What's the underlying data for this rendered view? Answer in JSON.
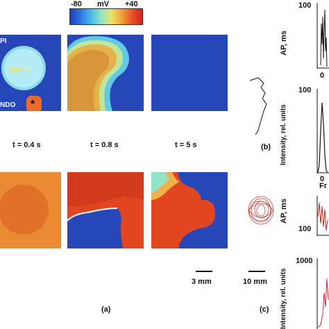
{
  "colorbar": {
    "min_label": "-80",
    "unit_label": "mV",
    "max_label": "+40",
    "colors": [
      "#1a3fbf",
      "#2f73e0",
      "#46b8e8",
      "#8fe3c6",
      "#e9e36a",
      "#f2a13a",
      "#e8512a",
      "#c8261c"
    ]
  },
  "region_labels": {
    "epi": "PI",
    "mcell": "MCELL",
    "endo": "NDO",
    "stimulus": "*"
  },
  "time_labels": [
    "t = 0.4 s",
    "t = 0.8 s",
    "t = 5 s"
  ],
  "scale_bars": {
    "maps": "3 mm",
    "trajectory": "10 mm"
  },
  "panel_labels": {
    "a": "(a)",
    "b": "(b)",
    "c": "(c)"
  },
  "side_plots": {
    "ap_ylabel": "AP, ms",
    "intensity_ylabel": "Intensity, rel. units",
    "ticks": {
      "top_ap": "100",
      "top_int": "100",
      "bottom_ap": "100",
      "bottom_int": "1000",
      "x_zero": "0",
      "x_fr": "Fr"
    }
  },
  "palette": {
    "blue_bg": "#2746b8",
    "orange_bg": "#e8732f",
    "red_wave": "#e0461f",
    "trace_black": "#111111",
    "trace_red": "#c8261c"
  }
}
